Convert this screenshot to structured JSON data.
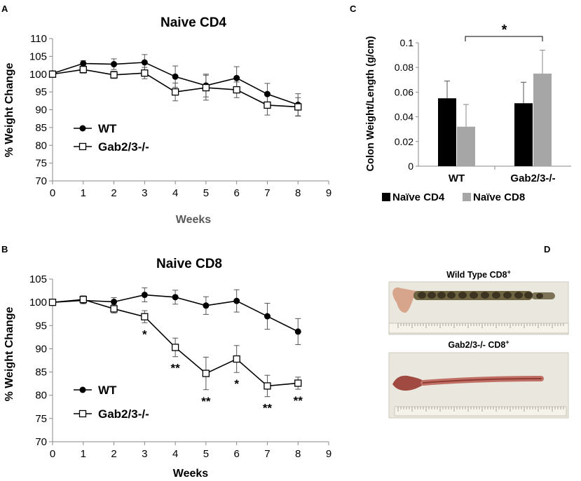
{
  "panels": {
    "A": "A",
    "B": "B",
    "C": "C",
    "D": "D"
  },
  "chart_data": [
    {
      "id": "A",
      "type": "line",
      "title": "Naive CD4",
      "xlabel": "Weeks",
      "ylabel": "% Weight Change",
      "xlim": [
        0,
        9
      ],
      "ylim": [
        70,
        110
      ],
      "xticks": [
        "0",
        "1",
        "2",
        "3",
        "4",
        "5",
        "6",
        "7",
        "8",
        "9"
      ],
      "yticks": [
        "70",
        "75",
        "80",
        "85",
        "90",
        "95",
        "100",
        "105",
        "110"
      ],
      "legend_position": "center-left",
      "series": [
        {
          "name": "WT",
          "marker": "filled-circle",
          "x": [
            0,
            1,
            2,
            3,
            4,
            5,
            6,
            7,
            8
          ],
          "y": [
            100.2,
            103.0,
            102.8,
            103.3,
            99.3,
            96.8,
            98.9,
            94.4,
            91.4
          ],
          "err": [
            0.5,
            0.8,
            1.5,
            2.2,
            3.0,
            3.2,
            3.2,
            3.0,
            3.1
          ]
        },
        {
          "name": "Gab2/3-/-",
          "marker": "open-square",
          "x": [
            0,
            1,
            2,
            3,
            4,
            5,
            6,
            7,
            8
          ],
          "y": [
            100.0,
            101.3,
            99.8,
            100.3,
            95.0,
            96.2,
            95.6,
            91.3,
            90.8
          ],
          "err": [
            0.5,
            1.0,
            1.0,
            1.6,
            2.5,
            3.5,
            2.2,
            2.8,
            2.6
          ]
        }
      ]
    },
    {
      "id": "B",
      "type": "line",
      "title": "Naive CD8",
      "xlabel": "Weeks",
      "ylabel": "% Weight Change",
      "xlim": [
        0,
        9
      ],
      "ylim": [
        70,
        105
      ],
      "xticks": [
        "0",
        "1",
        "2",
        "3",
        "4",
        "5",
        "6",
        "7",
        "8",
        "9"
      ],
      "yticks": [
        "70",
        "75",
        "80",
        "85",
        "90",
        "95",
        "100",
        "105"
      ],
      "legend_position": "bottom-left",
      "series": [
        {
          "name": "WT",
          "marker": "filled-circle",
          "x": [
            0,
            1,
            2,
            3,
            4,
            5,
            6,
            7,
            8
          ],
          "y": [
            100.0,
            100.4,
            100.1,
            101.6,
            101.1,
            99.3,
            100.3,
            97.0,
            93.7
          ],
          "err": [
            0.4,
            0.7,
            0.9,
            1.5,
            1.5,
            1.9,
            2.4,
            2.8,
            2.8
          ]
        },
        {
          "name": "Gab2/3-/-",
          "marker": "open-square",
          "x": [
            0,
            1,
            2,
            3,
            4,
            5,
            6,
            7,
            8
          ],
          "y": [
            100.0,
            100.6,
            98.6,
            96.9,
            90.3,
            84.7,
            87.8,
            82.0,
            82.6
          ],
          "err": [
            0.4,
            0.8,
            0.9,
            1.3,
            2.0,
            3.5,
            2.9,
            2.3,
            1.3
          ]
        }
      ],
      "annotations": [
        {
          "x": 3,
          "label": "*"
        },
        {
          "x": 4,
          "label": "**"
        },
        {
          "x": 5,
          "label": "**"
        },
        {
          "x": 6,
          "label": "*"
        },
        {
          "x": 7,
          "label": "**"
        },
        {
          "x": 8,
          "label": "**"
        }
      ]
    },
    {
      "id": "C",
      "type": "bar",
      "title": "",
      "xlabel": "",
      "ylabel": "Colon Weight/Length (g/cm)",
      "ylim": [
        0,
        0.1
      ],
      "yticks": [
        "0",
        "0.02",
        "0.04",
        "0.06",
        "0.08",
        "0.1"
      ],
      "categories": [
        "WT",
        "Gab2/3-/-"
      ],
      "legend_position": "bottom",
      "series": [
        {
          "name": "Naïve CD4",
          "color": "#000000",
          "values": [
            0.055,
            0.051
          ],
          "err": [
            0.014,
            0.017
          ]
        },
        {
          "name": "Naïve CD8",
          "color": "#a6a6a6",
          "values": [
            0.032,
            0.075
          ],
          "err": [
            0.018,
            0.019
          ]
        }
      ],
      "significance": {
        "label": "*"
      }
    }
  ],
  "photos": [
    {
      "title": "Wild  Type CD8",
      "superscript": "+"
    },
    {
      "title": "Gab2/3-/- CD8",
      "superscript": "+"
    }
  ]
}
